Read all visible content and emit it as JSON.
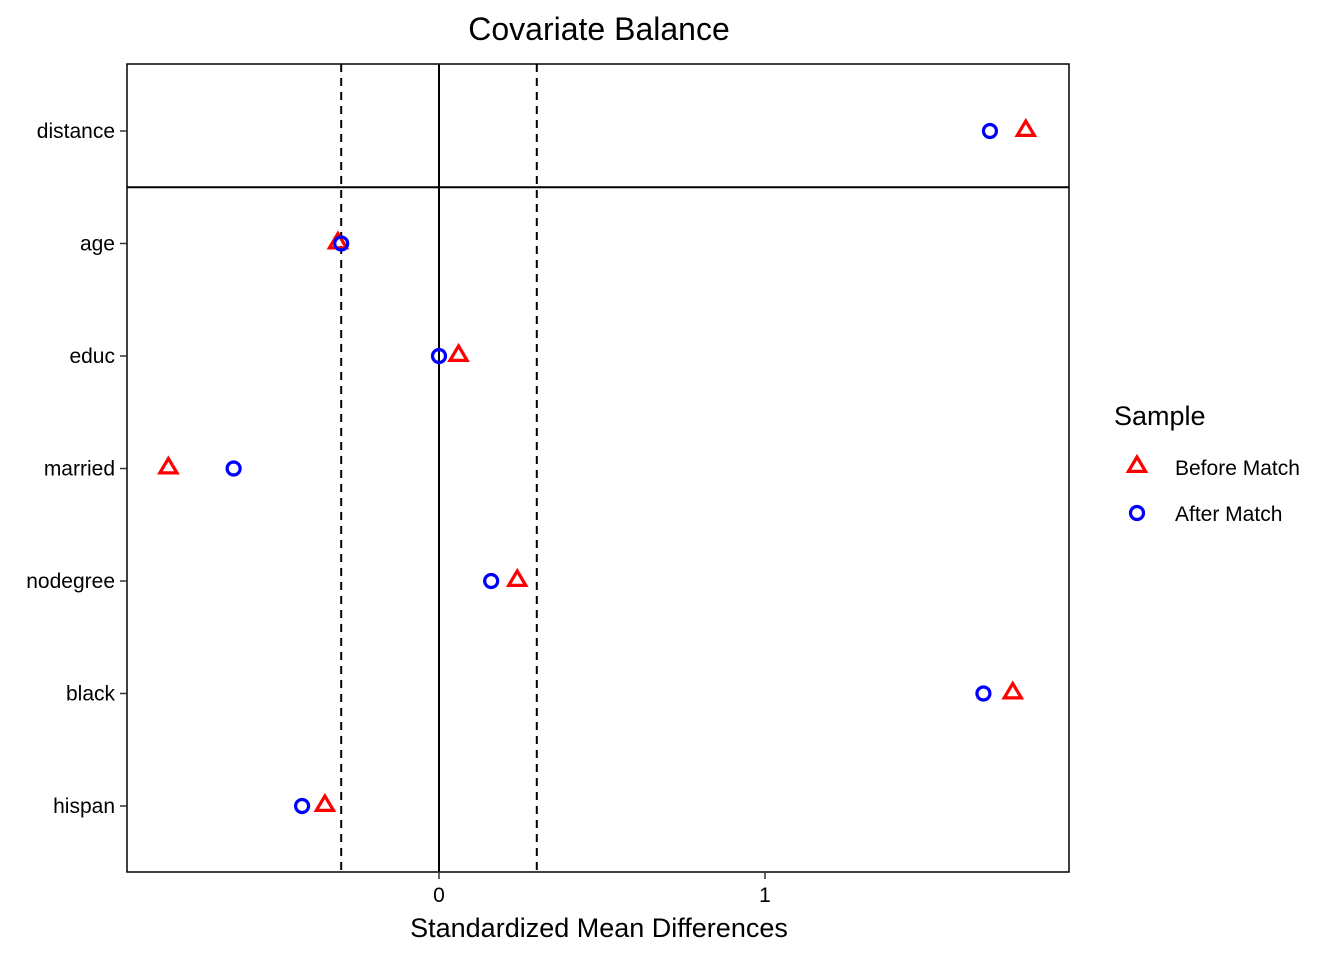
{
  "chart_data": {
    "type": "scatter",
    "title": "Covariate Balance",
    "xlabel": "Standardized Mean Differences",
    "ylabel": "",
    "xlim": [
      -0.96,
      1.93
    ],
    "xticks": [
      0,
      1
    ],
    "categories": [
      "distance",
      "age",
      "educ",
      "married",
      "nodegree",
      "black",
      "hispan"
    ],
    "reference_lines": {
      "solid_vertical": 0,
      "dashed_vertical": [
        -0.3,
        0.3
      ],
      "solid_horizontal_below": "distance"
    },
    "series": [
      {
        "name": "Before Match",
        "marker": "triangle-open",
        "color": "#ff0000",
        "values": [
          1.8,
          -0.31,
          0.06,
          -0.83,
          0.24,
          1.76,
          -0.35
        ]
      },
      {
        "name": "After Match",
        "marker": "circle-open",
        "color": "#0000ff",
        "values": [
          1.69,
          -0.3,
          0.0,
          -0.63,
          0.16,
          1.67,
          -0.42
        ]
      }
    ],
    "legend": {
      "title": "Sample",
      "position": "right"
    },
    "grid": false
  }
}
